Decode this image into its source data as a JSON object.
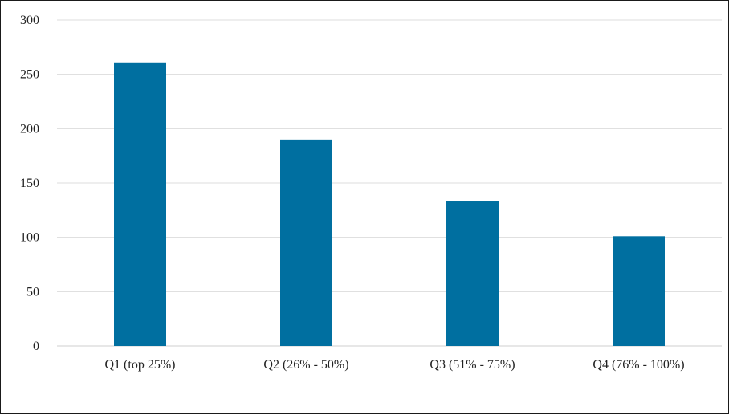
{
  "chart_data": {
    "type": "bar",
    "title": "",
    "xlabel": "",
    "ylabel": "",
    "categories": [
      "Q1 (top 25%)",
      "Q2 (26% - 50%)",
      "Q3 (51% - 75%)",
      "Q4 (76% - 100%)"
    ],
    "values": [
      261,
      190,
      133,
      101
    ],
    "ylim": [
      0,
      300
    ],
    "yticks": [
      "0",
      "50",
      "100",
      "150",
      "200",
      "250",
      "300"
    ],
    "grid": true,
    "legend": "none",
    "colors": {
      "bar": "#006fa0",
      "grid": "#dcdcdc",
      "text": "#222222"
    }
  }
}
